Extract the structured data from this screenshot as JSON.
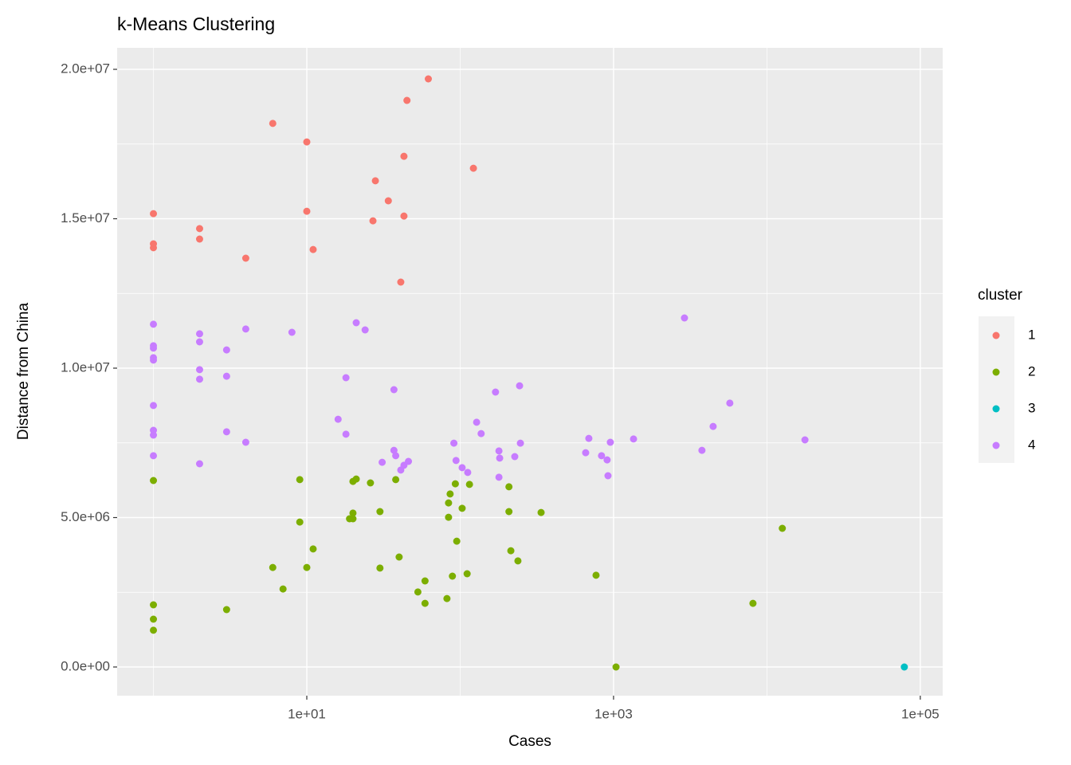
{
  "chart_data": {
    "type": "scatter",
    "title": "k-Means Clustering",
    "x_label": "Cases",
    "y_label": "Distance from China",
    "xscale": "log",
    "grid": true,
    "legend_title": "cluster",
    "legend_position": "right",
    "xlim": [
      0.58,
      140000
    ],
    "ylim": [
      -960000,
      20720000
    ],
    "xticks": [
      {
        "value": 10,
        "label": "1e+01"
      },
      {
        "value": 1000,
        "label": "1e+03"
      },
      {
        "value": 100000,
        "label": "1e+05"
      }
    ],
    "yticks": [
      {
        "value": 0,
        "label": "0.0e+00"
      },
      {
        "value": 5000000,
        "label": "5.0e+06"
      },
      {
        "value": 10000000,
        "label": "1.0e+07"
      },
      {
        "value": 15000000,
        "label": "1.5e+07"
      },
      {
        "value": 20000000,
        "label": "2.0e+07"
      }
    ],
    "series": [
      {
        "name": "1",
        "color": "#F8766D",
        "x": [
          1,
          1,
          1,
          2,
          2,
          4,
          6,
          10,
          10,
          11,
          27,
          28,
          34,
          41,
          43,
          43,
          45,
          62,
          122
        ],
        "values": [
          15170000,
          14160000,
          14030000,
          14670000,
          14320000,
          13680000,
          18190000,
          17570000,
          15250000,
          13970000,
          14930000,
          16270000,
          15600000,
          12880000,
          17090000,
          15090000,
          18960000,
          19680000,
          16690000
        ]
      },
      {
        "name": "2",
        "color": "#7CAE00",
        "x": [
          1,
          1,
          1,
          1,
          3,
          6,
          7,
          9,
          9,
          10,
          11,
          19,
          20,
          20,
          20,
          21,
          26,
          30,
          30,
          38,
          40,
          53,
          59,
          59,
          82,
          84,
          84,
          86,
          89,
          93,
          95,
          103,
          111,
          115,
          208,
          208,
          214,
          238,
          337,
          769,
          1038,
          8110,
          12600
        ],
        "values": [
          6240000,
          2080000,
          1600000,
          1230000,
          1920000,
          3330000,
          2610000,
          6270000,
          4850000,
          3330000,
          3950000,
          4960000,
          4960000,
          5150000,
          6210000,
          6290000,
          6160000,
          5200000,
          3310000,
          6270000,
          3680000,
          2510000,
          2880000,
          2130000,
          2290000,
          5010000,
          5490000,
          5790000,
          3040000,
          6130000,
          4210000,
          5310000,
          3120000,
          6110000,
          6030000,
          5200000,
          3890000,
          3550000,
          5170000,
          3070000,
          0,
          2130000,
          4640000
        ]
      },
      {
        "name": "3",
        "color": "#00BFC4",
        "x": [
          78700
        ],
        "values": [
          0
        ]
      },
      {
        "name": "4",
        "color": "#C77CFF",
        "x": [
          1,
          1,
          1,
          1,
          1,
          1,
          1,
          1,
          1,
          2,
          2,
          2,
          2,
          2,
          3,
          3,
          3,
          4,
          4,
          8,
          16,
          18,
          18,
          21,
          24,
          31,
          37,
          37,
          38,
          41,
          43,
          46,
          91,
          94,
          103,
          112,
          128,
          137,
          170,
          179,
          181,
          179,
          227,
          244,
          247,
          658,
          690,
          835,
          908,
          920,
          953,
          1350,
          2900,
          3770,
          4460,
          5730,
          17700
        ],
        "values": [
          11470000,
          10750000,
          10670000,
          10350000,
          10270000,
          8750000,
          7920000,
          7760000,
          7070000,
          11150000,
          10880000,
          9950000,
          9630000,
          6800000,
          10610000,
          9730000,
          7870000,
          11310000,
          7520000,
          11200000,
          8290000,
          9680000,
          7790000,
          11520000,
          11280000,
          6850000,
          9280000,
          7250000,
          7070000,
          6590000,
          6750000,
          6880000,
          7490000,
          6910000,
          6670000,
          6510000,
          8190000,
          7810000,
          9200000,
          7230000,
          6990000,
          6350000,
          7040000,
          9410000,
          7490000,
          7170000,
          7650000,
          7070000,
          6930000,
          6400000,
          7520000,
          7630000,
          11680000,
          7250000,
          8050000,
          8830000,
          7600000
        ]
      }
    ]
  }
}
